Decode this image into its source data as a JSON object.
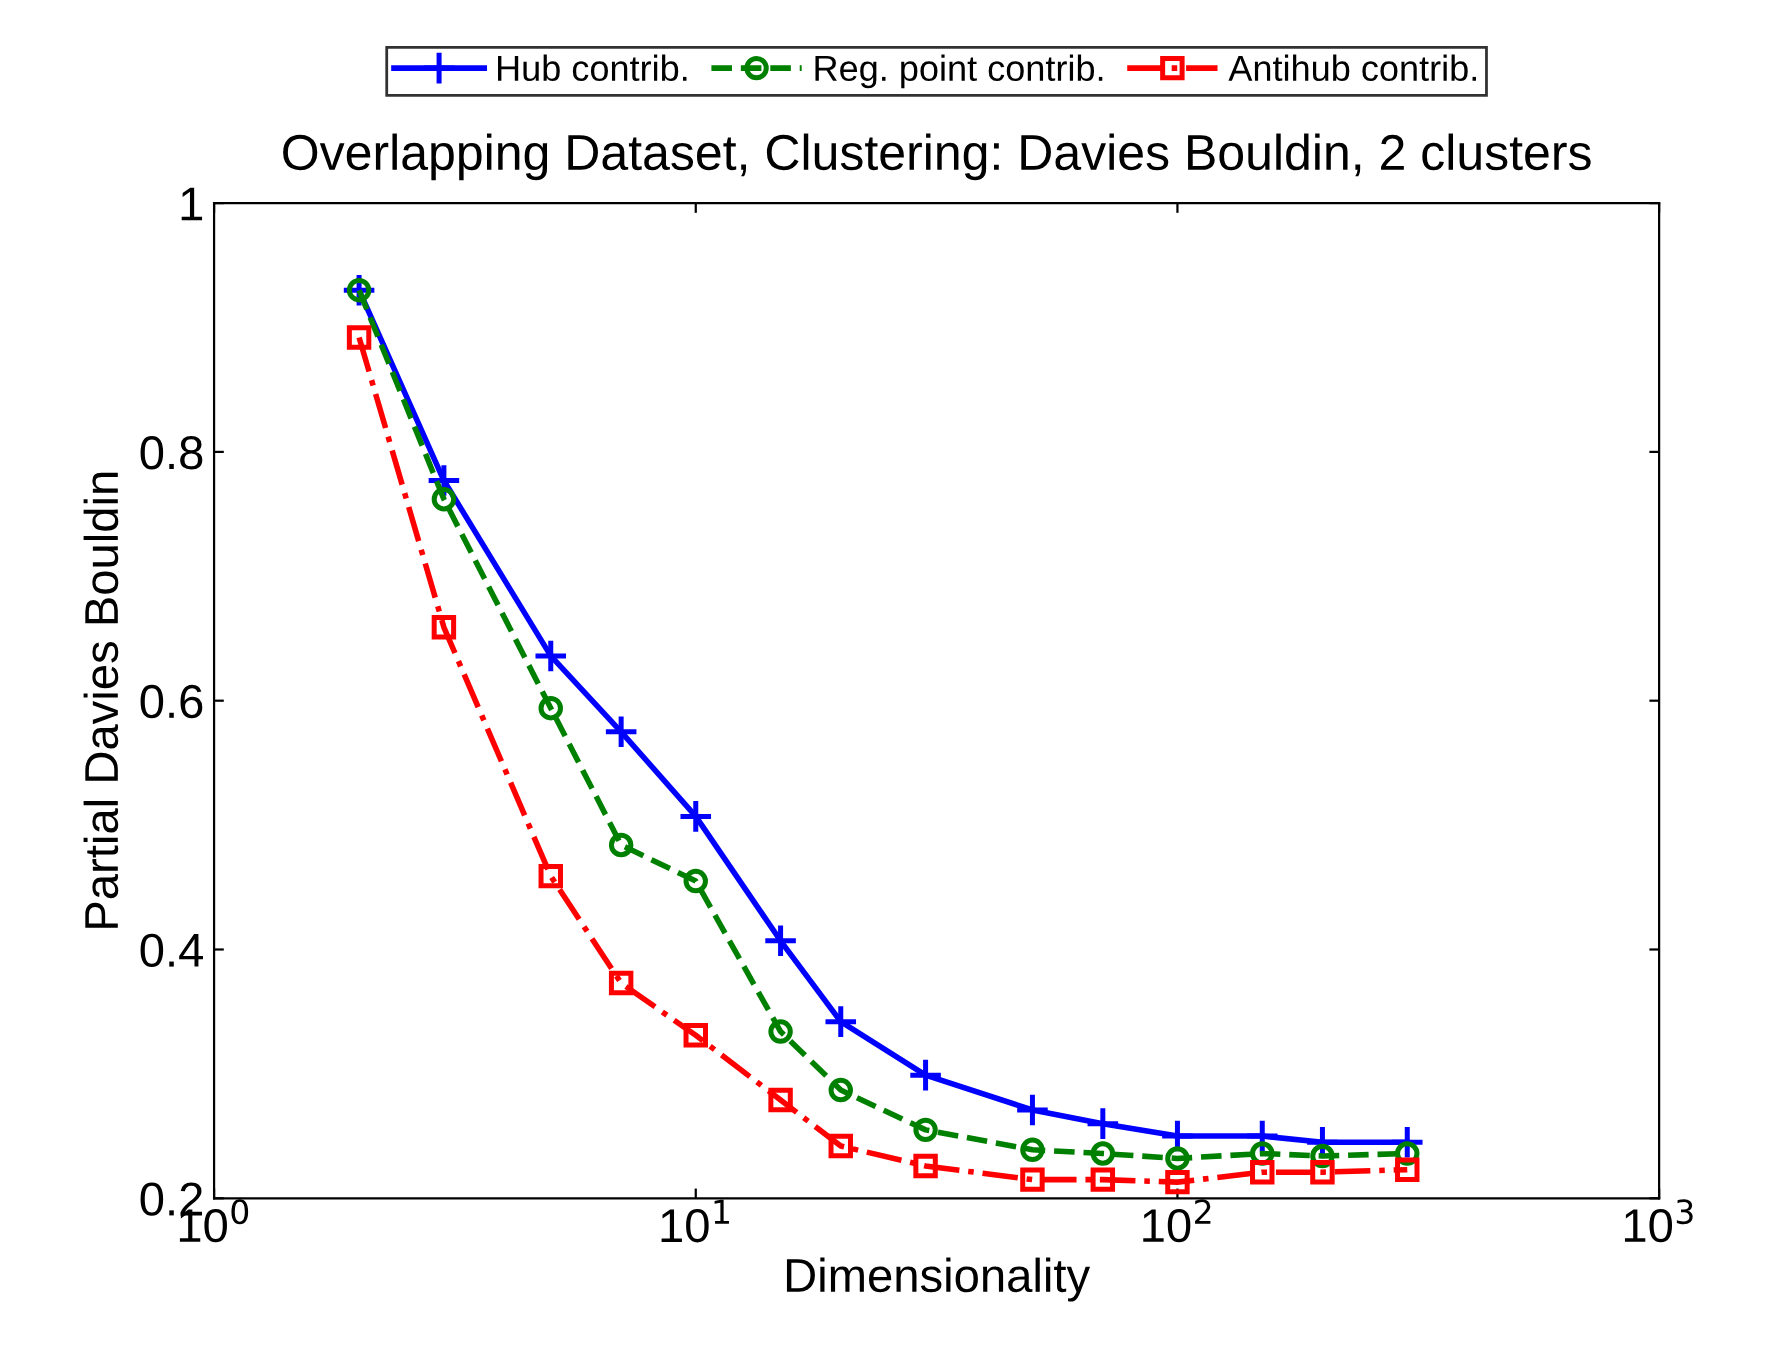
{
  "chart_data": {
    "type": "line",
    "title": "Overlapping Dataset, Clustering: Davies Bouldin, 2 clusters",
    "xlabel": "Dimensionality",
    "ylabel": "Partial Davies Bouldin",
    "log": "x",
    "x": [
      2,
      3,
      5,
      7,
      10,
      15,
      20,
      30,
      50,
      70,
      100,
      150,
      200,
      300
    ],
    "xlim": [
      1,
      1000
    ],
    "xticks": [
      {
        "value": 1,
        "label": "10$^{0}$"
      },
      {
        "value": 10,
        "label": "10$^{1}$"
      },
      {
        "value": 100,
        "label": "10$^{2}$"
      },
      {
        "value": 1000,
        "label": "10$^{3}$"
      }
    ],
    "ylim": [
      0.2,
      1
    ],
    "yticks": [
      0.2,
      0.4,
      0.6,
      0.8,
      1
    ],
    "grid": false,
    "legend": "top",
    "series": [
      {
        "name": "Hub contrib.",
        "color": "#0000ff",
        "marker": "cross",
        "line_style": "solid",
        "values": [
          0.93,
          0.777,
          0.636,
          0.575,
          0.507,
          0.407,
          0.342,
          0.299,
          0.271,
          0.26,
          0.25,
          0.25,
          0.245,
          0.245
        ]
      },
      {
        "name": "Reg. point contrib.",
        "color": "#008000",
        "marker": "circle",
        "line_style": "dashed",
        "values": [
          0.93,
          0.762,
          0.594,
          0.484,
          0.455,
          0.334,
          0.287,
          0.255,
          0.239,
          0.236,
          0.232,
          0.236,
          0.234,
          0.236
        ]
      },
      {
        "name": "Antihub contrib.",
        "color": "#ff0000",
        "marker": "square",
        "line_style": "dashdot",
        "values": [
          0.892,
          0.659,
          0.459,
          0.373,
          0.331,
          0.279,
          0.242,
          0.226,
          0.215,
          0.215,
          0.213,
          0.221,
          0.221,
          0.223
        ]
      }
    ]
  }
}
